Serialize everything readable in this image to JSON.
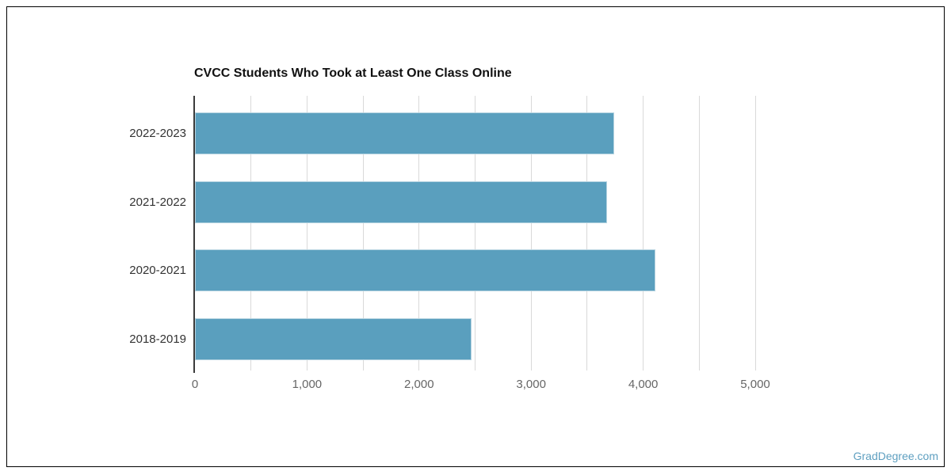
{
  "frame": {
    "border_color": "#000000",
    "background": "#ffffff"
  },
  "watermark": {
    "text": "GradDegree.com",
    "color": "#5e9fc0"
  },
  "chart_data": {
    "type": "bar",
    "orientation": "horizontal",
    "title": "CVCC Students Who Took at Least One Class Online",
    "categories": [
      "2022-2023",
      "2021-2022",
      "2020-2021",
      "2018-2019"
    ],
    "values": [
      3740,
      3680,
      4110,
      2470
    ],
    "xlabel": "",
    "ylabel": "",
    "xlim": [
      0,
      5000
    ],
    "x_tick_values": [
      0,
      1000,
      2000,
      3000,
      4000,
      5000
    ],
    "x_tick_labels": [
      "0",
      "1,000",
      "2,000",
      "3,000",
      "4,000",
      "5,000"
    ],
    "gridline_interval": 500,
    "grid": true,
    "legend": false,
    "colors": {
      "bar": "#5a9fbe",
      "bar_border": "#b5d3e0",
      "gridline": "#d9d9d9",
      "axis_line": "#3b3b3b",
      "title": "#111111",
      "category_label": "#333333",
      "tick_label": "#666666"
    }
  }
}
